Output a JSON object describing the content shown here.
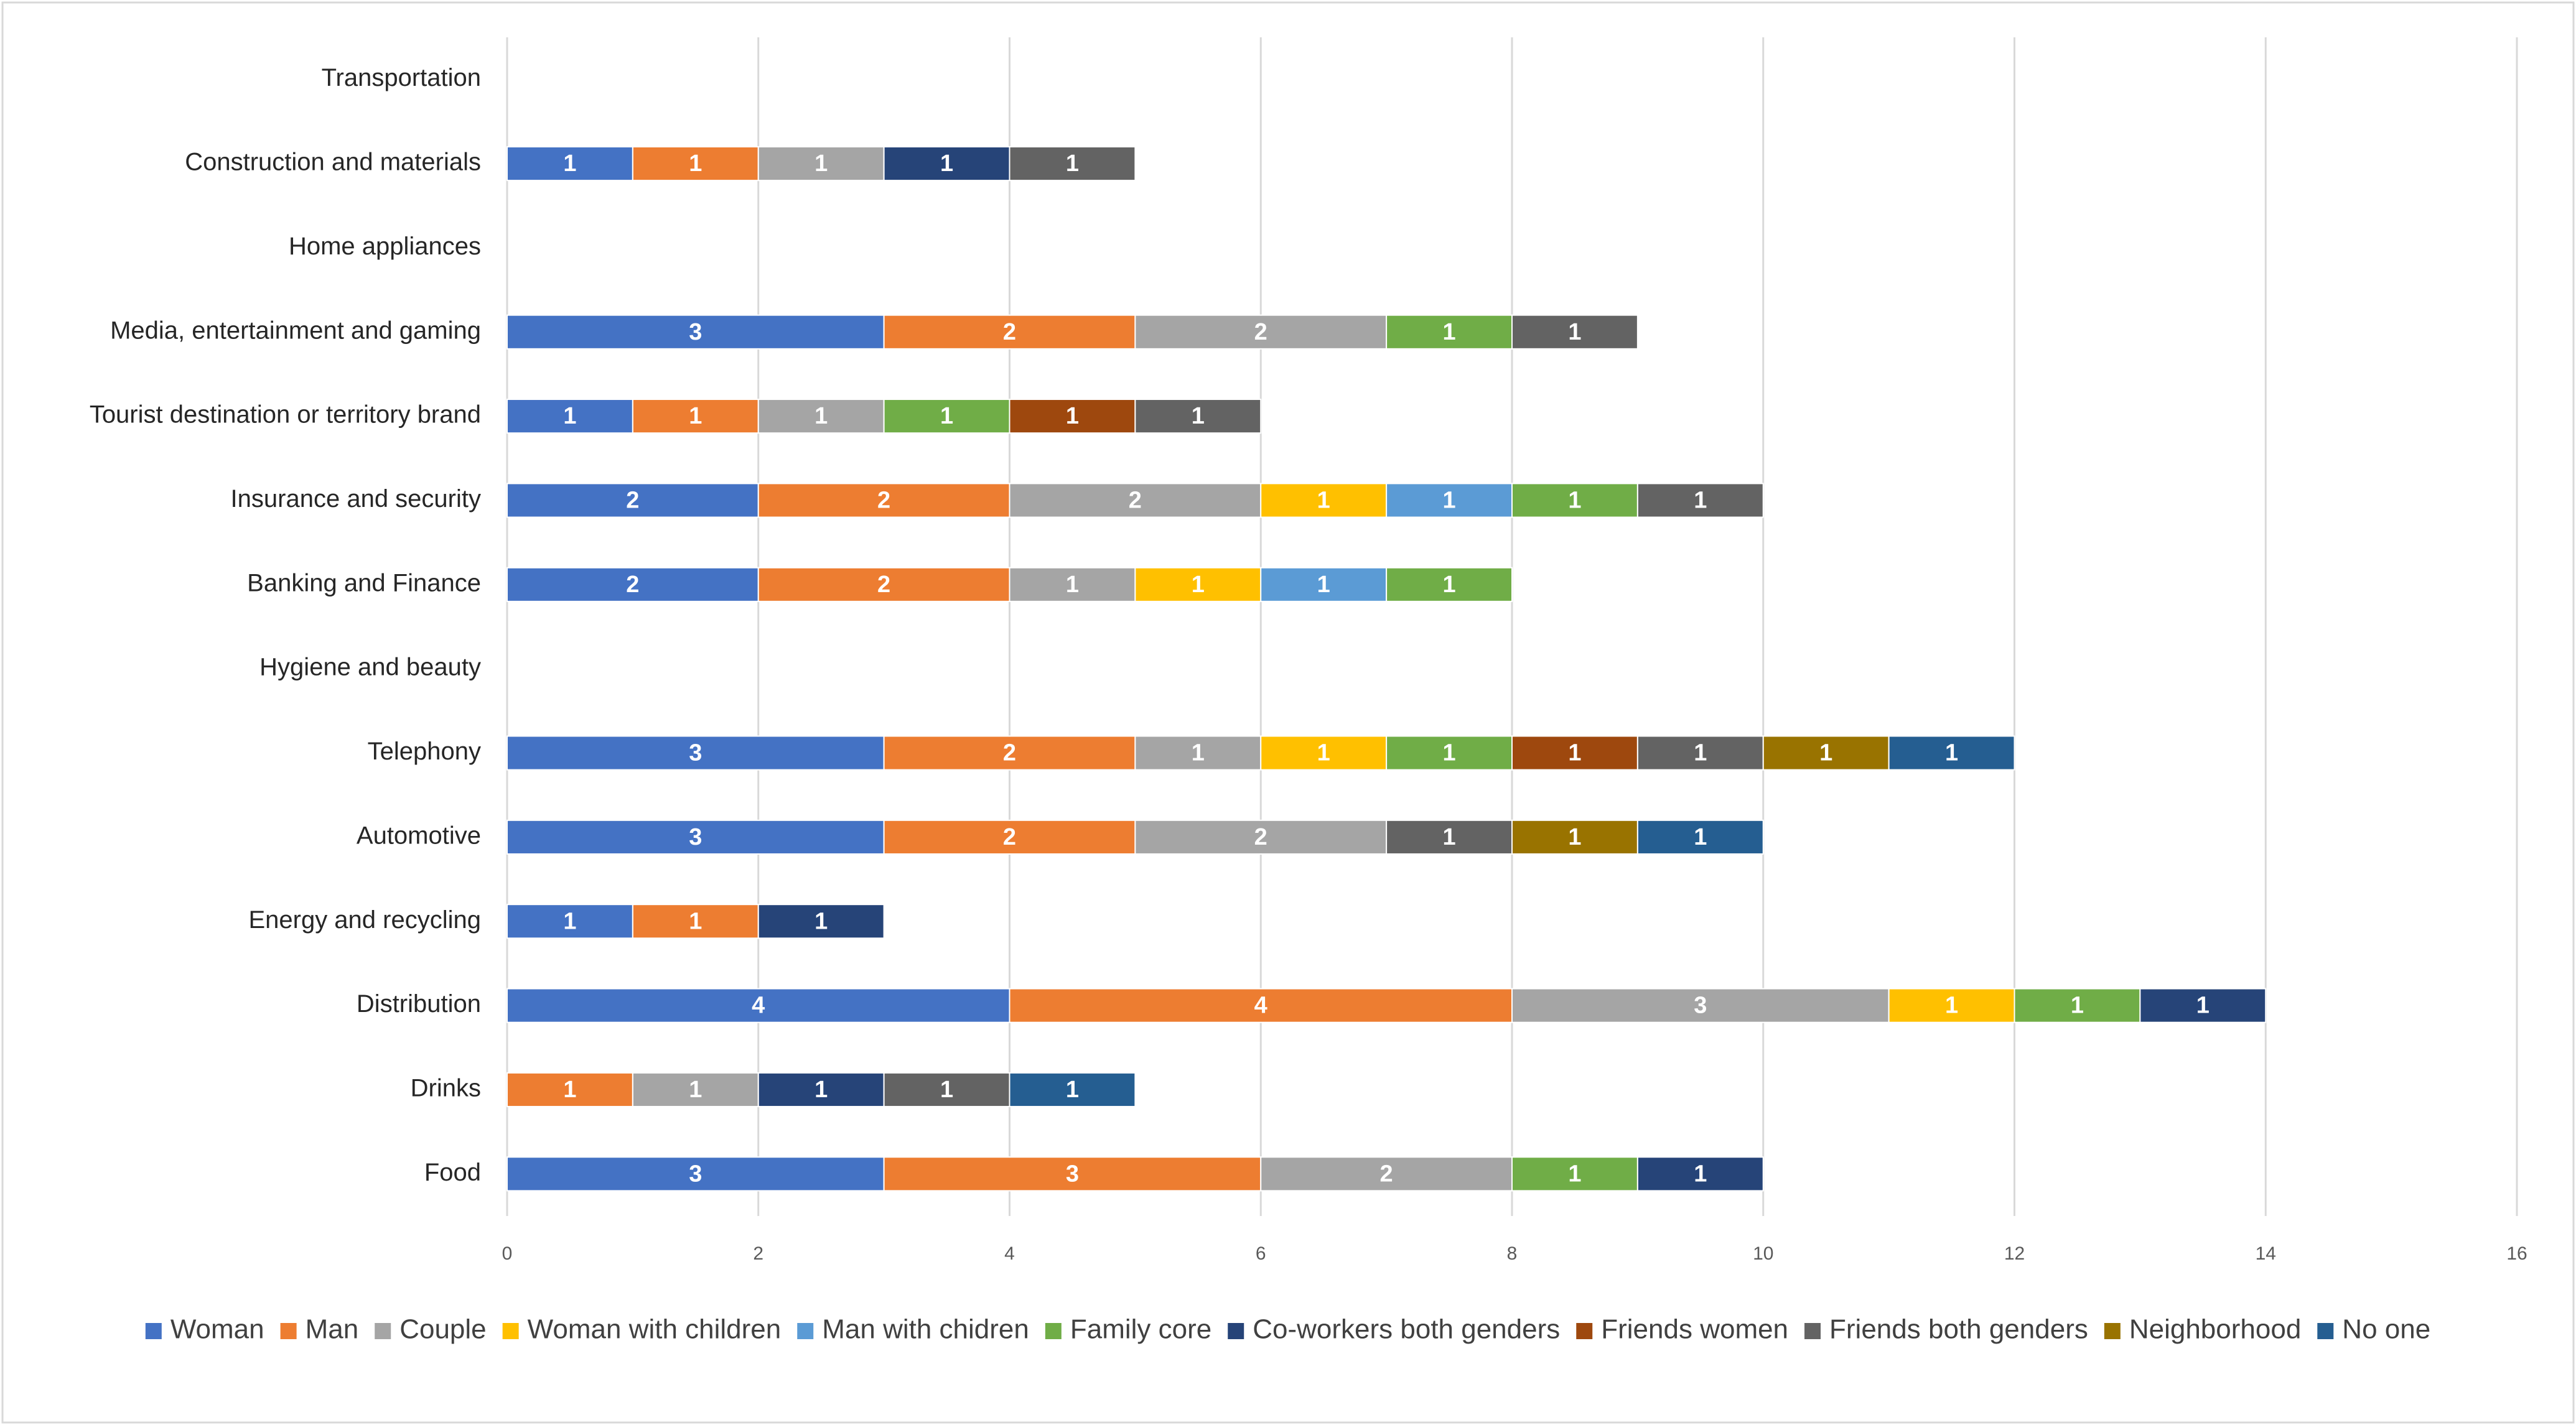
{
  "chart_data": {
    "type": "bar",
    "orientation": "horizontal",
    "stacked": true,
    "title": "",
    "xlabel": "",
    "ylabel": "",
    "xlim": [
      0,
      16
    ],
    "x_ticks": [
      0,
      2,
      4,
      6,
      8,
      10,
      12,
      14,
      16
    ],
    "grid": "vertical",
    "legend_position": "bottom",
    "categories": [
      "Food",
      "Drinks",
      "Distribution",
      "Energy and recycling",
      "Automotive",
      "Telephony",
      "Hygiene and beauty",
      "Banking and Finance",
      "Insurance and security",
      "Tourist destination or territory brand",
      "Media, entertainment and gaming",
      "Home appliances",
      "Construction and materials",
      "Transportation"
    ],
    "series": [
      {
        "name": "Woman",
        "color": "#4472C4",
        "values": [
          3,
          0,
          4,
          1,
          3,
          3,
          0,
          2,
          2,
          1,
          3,
          0,
          1,
          0
        ]
      },
      {
        "name": "Man",
        "color": "#ED7D31",
        "values": [
          3,
          1,
          4,
          1,
          2,
          2,
          0,
          2,
          2,
          1,
          2,
          0,
          1,
          0
        ]
      },
      {
        "name": "Couple",
        "color": "#A5A5A5",
        "values": [
          2,
          1,
          3,
          0,
          2,
          1,
          0,
          1,
          2,
          1,
          2,
          0,
          1,
          0
        ]
      },
      {
        "name": "Woman with children",
        "color": "#FFC000",
        "values": [
          0,
          0,
          1,
          0,
          0,
          1,
          0,
          1,
          1,
          0,
          0,
          0,
          0,
          0
        ]
      },
      {
        "name": "Man with chidren",
        "color": "#5B9BD5",
        "values": [
          0,
          0,
          0,
          0,
          0,
          0,
          0,
          1,
          1,
          0,
          0,
          0,
          0,
          0
        ]
      },
      {
        "name": "Family core",
        "color": "#70AD47",
        "values": [
          1,
          0,
          1,
          0,
          0,
          1,
          0,
          1,
          1,
          1,
          1,
          0,
          0,
          0
        ]
      },
      {
        "name": "Co-workers both genders",
        "color": "#264478",
        "values": [
          1,
          1,
          1,
          1,
          0,
          0,
          0,
          0,
          0,
          0,
          0,
          0,
          1,
          0
        ]
      },
      {
        "name": "Friends women",
        "color": "#9E480E",
        "values": [
          0,
          0,
          0,
          0,
          0,
          1,
          0,
          0,
          0,
          1,
          0,
          0,
          0,
          0
        ]
      },
      {
        "name": "Friends both genders",
        "color": "#636363",
        "values": [
          0,
          1,
          0,
          0,
          1,
          1,
          0,
          0,
          1,
          1,
          1,
          0,
          1,
          0
        ]
      },
      {
        "name": "Neighborhood",
        "color": "#997300",
        "values": [
          0,
          0,
          0,
          0,
          1,
          1,
          0,
          0,
          0,
          0,
          0,
          0,
          0,
          0
        ]
      },
      {
        "name": "No one",
        "color": "#255E91",
        "values": [
          0,
          1,
          0,
          0,
          1,
          1,
          0,
          0,
          0,
          0,
          0,
          0,
          0,
          0
        ]
      }
    ]
  }
}
